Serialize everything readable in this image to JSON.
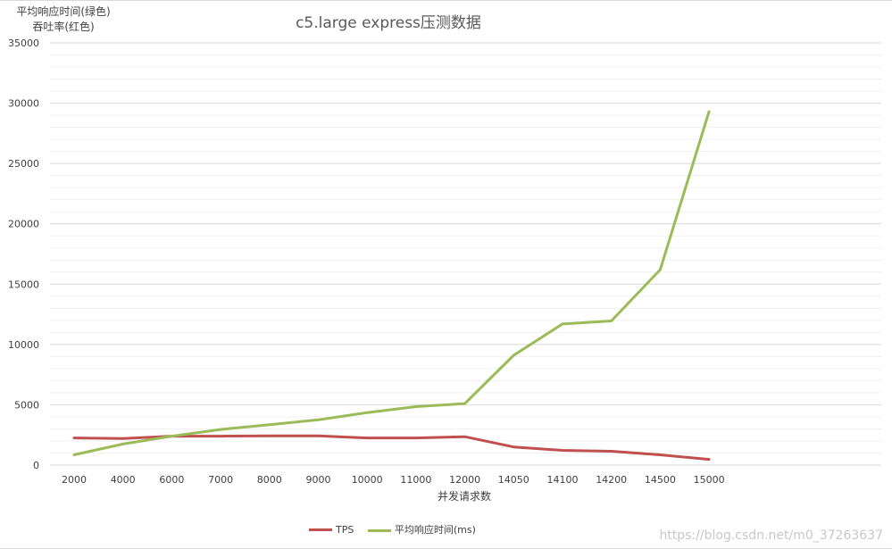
{
  "chart_data": {
    "type": "line",
    "title": "c5.large express压测数据",
    "ylabel_lines": [
      "平均响应时间(绿色)",
      "吞吐率(红色)"
    ],
    "xlabel": "并发请求数",
    "categories": [
      "2000",
      "4000",
      "6000",
      "7000",
      "8000",
      "9000",
      "10000",
      "11000",
      "12000",
      "14050",
      "14100",
      "14200",
      "14500",
      "15000"
    ],
    "yticks": [
      "0",
      "5000",
      "10000",
      "15000",
      "20000",
      "25000",
      "30000",
      "35000"
    ],
    "ylim": [
      0,
      35000
    ],
    "grid": true,
    "legend_position": "bottom",
    "series": [
      {
        "name": "TPS",
        "color": "#c0504d",
        "values": [
          2250,
          2200,
          2400,
          2400,
          2420,
          2420,
          2250,
          2250,
          2350,
          1500,
          1220,
          1150,
          850,
          470
        ]
      },
      {
        "name": "平均响应时间(ms)",
        "color": "#9bbb59",
        "values": [
          850,
          1750,
          2400,
          2950,
          3350,
          3750,
          4350,
          4850,
          5100,
          9100,
          11700,
          11950,
          16200,
          29300
        ]
      }
    ]
  },
  "watermark": "https://blog.csdn.net/m0_37263637"
}
